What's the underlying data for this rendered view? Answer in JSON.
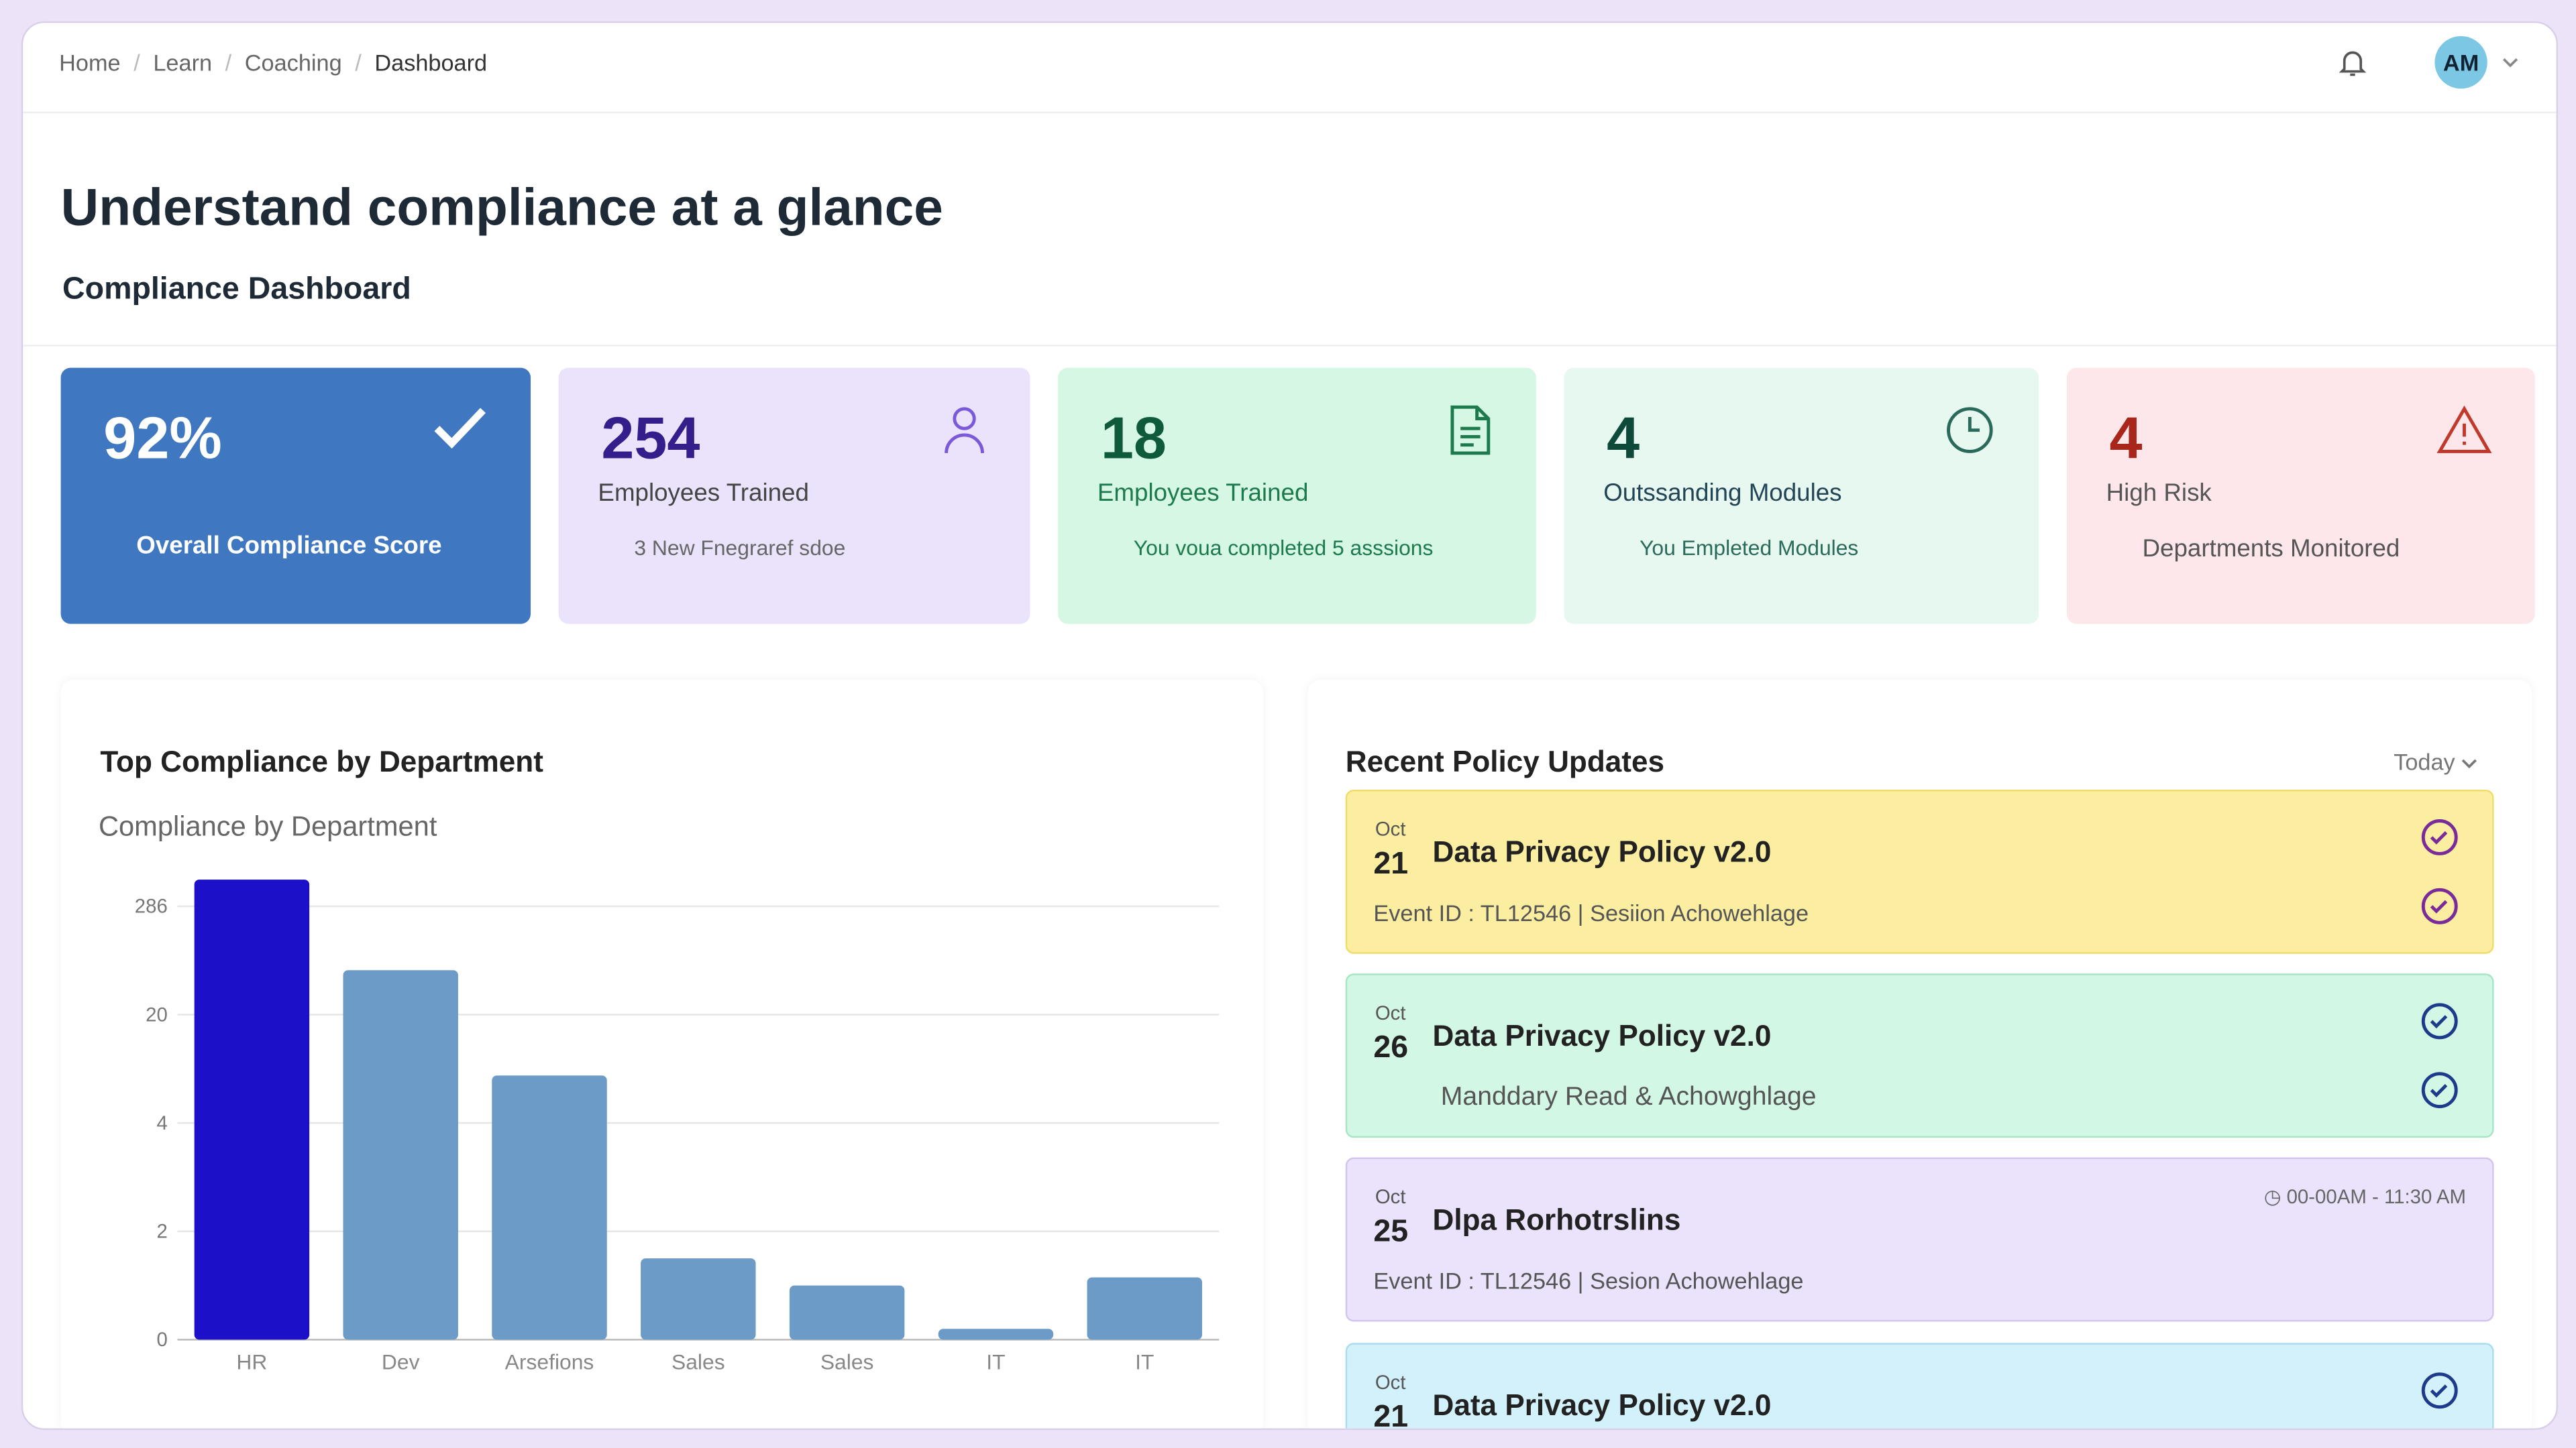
{
  "header": {
    "breadcrumbs": [
      "Home",
      "Learn",
      "Coaching",
      "Dashboard"
    ],
    "avatar": "AM"
  },
  "page": {
    "title": "Understand compliance at a glance",
    "subtitle": "Compliance Dashboard"
  },
  "cards": [
    {
      "value": "92%",
      "label": "Overall Compliance Score"
    },
    {
      "value": 254,
      "label": "Employees Trained",
      "note": "3 New Fnegraref sdoe"
    },
    {
      "value": 18,
      "label": "Employees Trained",
      "note": "You voua completed 5 asssions"
    },
    {
      "value": 4,
      "label": "Outssanding Modules",
      "note": "You Empleted Modules"
    },
    {
      "value": 4,
      "label": "High Risk",
      "note": "Departments Monitored"
    }
  ],
  "chart_data": {
    "type": "bar",
    "title": "Top Compliance by Department",
    "subtitle": "Compliance by Department",
    "categories": [
      "HR",
      "Dev",
      "Arsefions",
      "Sales",
      "Sales",
      "IT",
      "IT"
    ],
    "values": [
      314,
      129,
      11,
      1.5,
      1,
      0.2,
      1.15
    ],
    "colors": [
      "#1c10c8",
      "#6b9bc6",
      "#6b9bc6",
      "#6b9bc6",
      "#6b9bc6",
      "#6b9bc6",
      "#6b9bc6"
    ],
    "ylim": [
      0,
      400
    ],
    "yticks": [
      0,
      2,
      4,
      20,
      286
    ],
    "grid": true
  },
  "policy": {
    "title": "Recent Policy Updates",
    "filter": "Today",
    "items": [
      {
        "month": "Oct",
        "day": "21",
        "title": "Data Privacy Policy v2.0",
        "detail": "Event ID : TL12546 | Sesiion Achowehlage"
      },
      {
        "month": "Oct",
        "day": "26",
        "title": "Data Privacy Policy v2.0",
        "detail": "Manddary Read & Achowghlage"
      },
      {
        "month": "Oct",
        "day": "25",
        "title": "Dlpa Rorhotrslins",
        "time": "00-00AM - 11:30 AM",
        "detail": "Event ID : TL12546 | Sesion Achowehlage"
      },
      {
        "month": "Oct",
        "day": "21",
        "title": "Data Privacy Policy v2.0"
      }
    ]
  }
}
